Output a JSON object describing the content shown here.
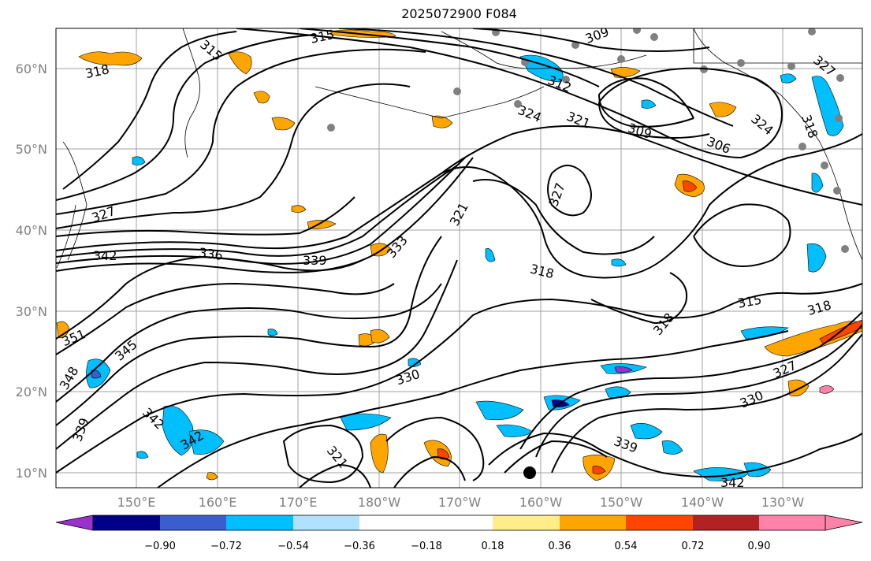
{
  "title": "2025072900 F084",
  "lat_labels": [
    "10°N",
    "20°N",
    "30°N",
    "40°N",
    "50°N",
    "60°N"
  ],
  "lon_labels": [
    "150°E",
    "160°E",
    "170°E",
    "180°W",
    "170°W",
    "160°W",
    "150°W",
    "140°W",
    "130°W"
  ],
  "contour_labels": [
    "315",
    "315",
    "318",
    "309",
    "306",
    "324",
    "321",
    "327",
    "312",
    "327",
    "327",
    "342",
    "336",
    "339",
    "333",
    "321",
    "318",
    "318",
    "315",
    "318",
    "351",
    "345",
    "330",
    "348",
    "342",
    "342",
    "339",
    "330",
    "327",
    "321",
    "339",
    "342",
    "330",
    "309",
    "324",
    "318"
  ],
  "colorbar": {
    "ticks": [
      "−0.90",
      "−0.72",
      "−0.54",
      "−0.36",
      "−0.18",
      "0.18",
      "0.36",
      "0.54",
      "0.72",
      "0.90"
    ],
    "colors": [
      "#9932cc",
      "#00008b",
      "#3a5fcd",
      "#00bfff",
      "#b0e2ff",
      "#ffffff",
      "#ffec8b",
      "#ffa500",
      "#ff4500",
      "#b22222",
      "#ff82ab"
    ]
  }
}
